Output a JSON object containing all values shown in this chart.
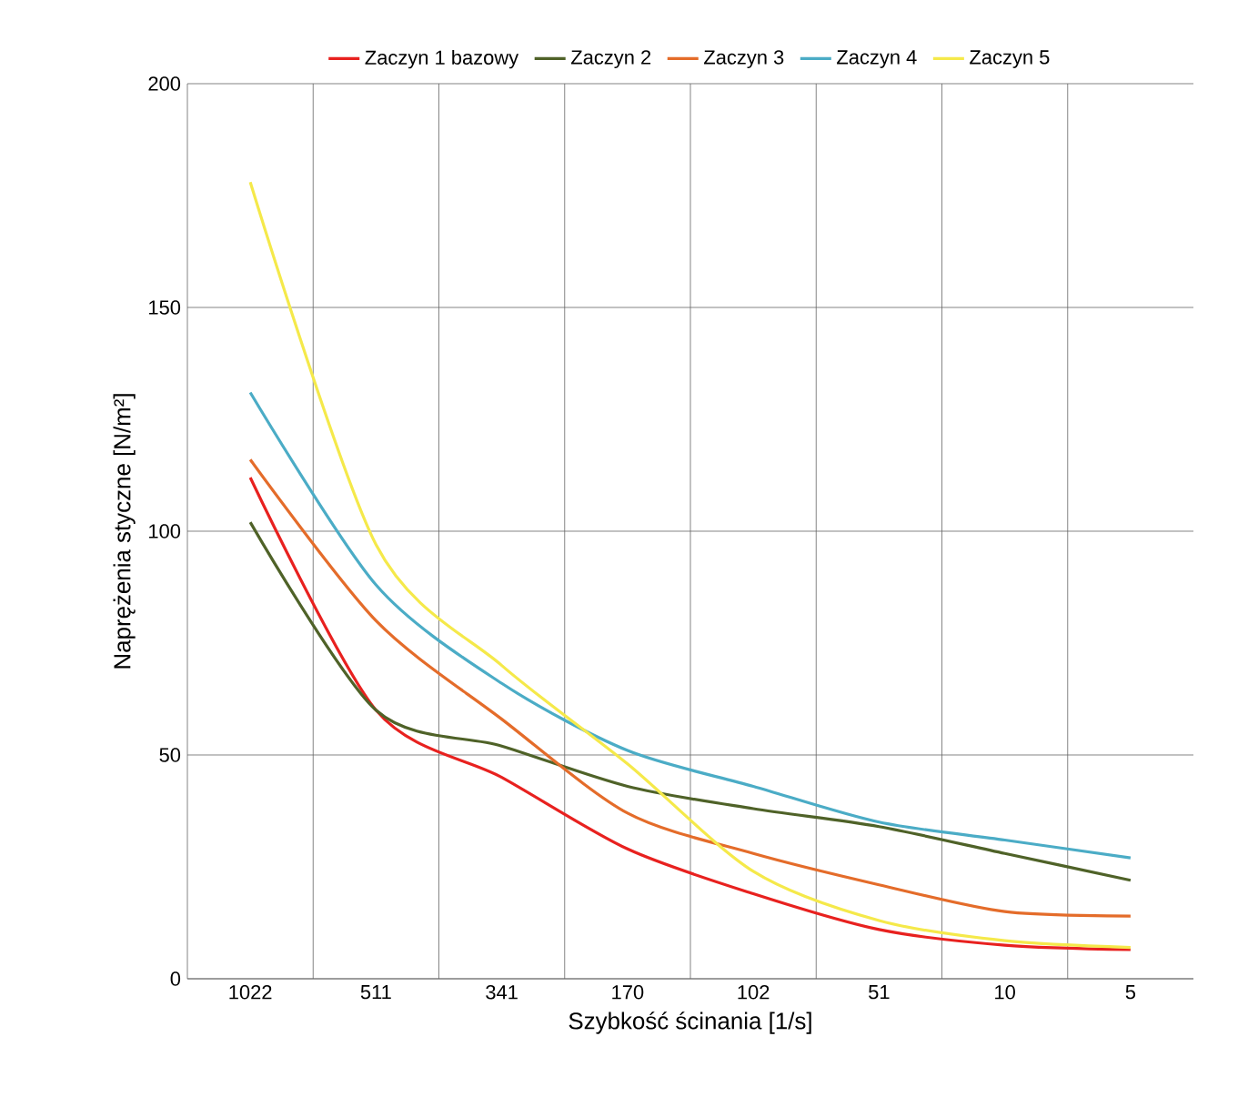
{
  "chart_data": {
    "type": "line",
    "xlabel": "Szybkość ścinania [1/s]",
    "ylabel": "Naprężenia styczne [N/m²]",
    "categories": [
      "1022",
      "511",
      "341",
      "170",
      "102",
      "51",
      "10",
      "5"
    ],
    "ylim": [
      0,
      200
    ],
    "yticks": [
      0,
      50,
      100,
      150,
      200
    ],
    "grid": true,
    "legend": "top",
    "marker": "none",
    "line_style": "solid",
    "series": [
      {
        "name": "Zaczyn 1 bazowy",
        "color": "#e8211f",
        "values": [
          112,
          60,
          45,
          29,
          19,
          11,
          7.5,
          6.5
        ]
      },
      {
        "name": "Zaczyn 2",
        "color": "#4f6228",
        "values": [
          102,
          60,
          52,
          43,
          38,
          34,
          28,
          22
        ]
      },
      {
        "name": "Zaczyn 3",
        "color": "#e46c2a",
        "values": [
          116,
          80,
          58,
          37,
          28,
          21,
          15,
          14
        ]
      },
      {
        "name": "Zaczyn 4",
        "color": "#4bacc6",
        "values": [
          131,
          88,
          66,
          51,
          43,
          35,
          31,
          27
        ]
      },
      {
        "name": "Zaczyn 5",
        "color": "#f5e94a",
        "values": [
          178,
          97,
          70,
          48,
          24,
          13,
          8.5,
          7
        ]
      }
    ]
  }
}
